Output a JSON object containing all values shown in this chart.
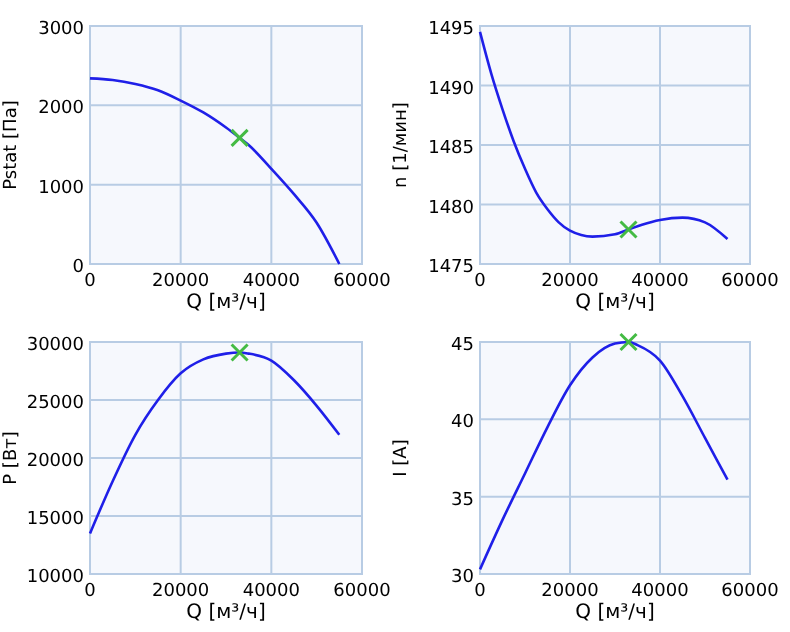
{
  "chart_data": [
    {
      "type": "line",
      "xlabel": "Q [м³/ч]",
      "ylabel": "Pstat [Па]",
      "xlim": [
        0,
        60000
      ],
      "ylim": [
        0,
        3000
      ],
      "xticks": [
        0,
        20000,
        40000,
        60000
      ],
      "yticks": [
        0,
        1000,
        2000,
        3000
      ],
      "grid": true,
      "series": [
        {
          "type": "line",
          "color": "#1f1fe8",
          "x": [
            0,
            5000,
            10000,
            15000,
            20000,
            25000,
            30000,
            33000,
            35000,
            40000,
            45000,
            50000,
            55000
          ],
          "values": [
            2340,
            2320,
            2270,
            2190,
            2060,
            1910,
            1720,
            1590,
            1500,
            1200,
            880,
            520,
            0
          ]
        },
        {
          "type": "scatter",
          "marker": "cross",
          "color": "#44bb44",
          "x": [
            33000
          ],
          "values": [
            1590
          ]
        }
      ]
    },
    {
      "type": "line",
      "xlabel": "Q [м³/ч]",
      "ylabel": "n [1/мин]",
      "xlim": [
        0,
        60000
      ],
      "ylim": [
        1475,
        1495
      ],
      "xticks": [
        0,
        20000,
        40000,
        60000
      ],
      "yticks": [
        1475,
        1480,
        1485,
        1490,
        1495
      ],
      "grid": true,
      "series": [
        {
          "type": "line",
          "color": "#1f1fe8",
          "x": [
            0,
            2500,
            5000,
            7500,
            10000,
            12500,
            15000,
            17500,
            20000,
            25000,
            30000,
            33000,
            36000,
            40000,
            45000,
            50000,
            55000
          ],
          "values": [
            1494.5,
            1491,
            1488,
            1485.3,
            1483,
            1481,
            1479.6,
            1478.5,
            1477.8,
            1477.3,
            1477.5,
            1477.9,
            1478.3,
            1478.7,
            1478.9,
            1478.5,
            1477.1
          ]
        },
        {
          "type": "scatter",
          "marker": "cross",
          "color": "#44bb44",
          "x": [
            33000
          ],
          "values": [
            1477.9
          ]
        }
      ]
    },
    {
      "type": "line",
      "xlabel": "Q [м³/ч]",
      "ylabel": "P [Вт]",
      "xlim": [
        0,
        60000
      ],
      "ylim": [
        10000,
        30000
      ],
      "xticks": [
        0,
        20000,
        40000,
        60000
      ],
      "yticks": [
        10000,
        15000,
        20000,
        25000,
        30000
      ],
      "grid": true,
      "series": [
        {
          "type": "line",
          "color": "#1f1fe8",
          "x": [
            0,
            5000,
            10000,
            15000,
            20000,
            25000,
            30000,
            33000,
            35000,
            40000,
            45000,
            50000,
            55000
          ],
          "values": [
            13500,
            18000,
            22000,
            25000,
            27300,
            28500,
            29000,
            29100,
            29000,
            28400,
            26700,
            24500,
            22000
          ]
        },
        {
          "type": "scatter",
          "marker": "cross",
          "color": "#44bb44",
          "x": [
            33000
          ],
          "values": [
            29100
          ]
        }
      ]
    },
    {
      "type": "line",
      "xlabel": "Q [м³/ч]",
      "ylabel": "I [A]",
      "xlim": [
        0,
        60000
      ],
      "ylim": [
        30,
        45
      ],
      "xticks": [
        0,
        20000,
        40000,
        60000
      ],
      "yticks": [
        30,
        35,
        40,
        45
      ],
      "grid": true,
      "series": [
        {
          "type": "line",
          "color": "#1f1fe8",
          "x": [
            0,
            5000,
            10000,
            15000,
            20000,
            25000,
            30000,
            33000,
            35000,
            40000,
            45000,
            50000,
            55000
          ],
          "values": [
            30.3,
            33.5,
            36.5,
            39.5,
            42.2,
            44,
            44.9,
            45,
            44.8,
            43.8,
            41.5,
            38.8,
            36.1
          ]
        },
        {
          "type": "scatter",
          "marker": "cross",
          "color": "#44bb44",
          "x": [
            33000
          ],
          "values": [
            45
          ]
        }
      ]
    }
  ]
}
